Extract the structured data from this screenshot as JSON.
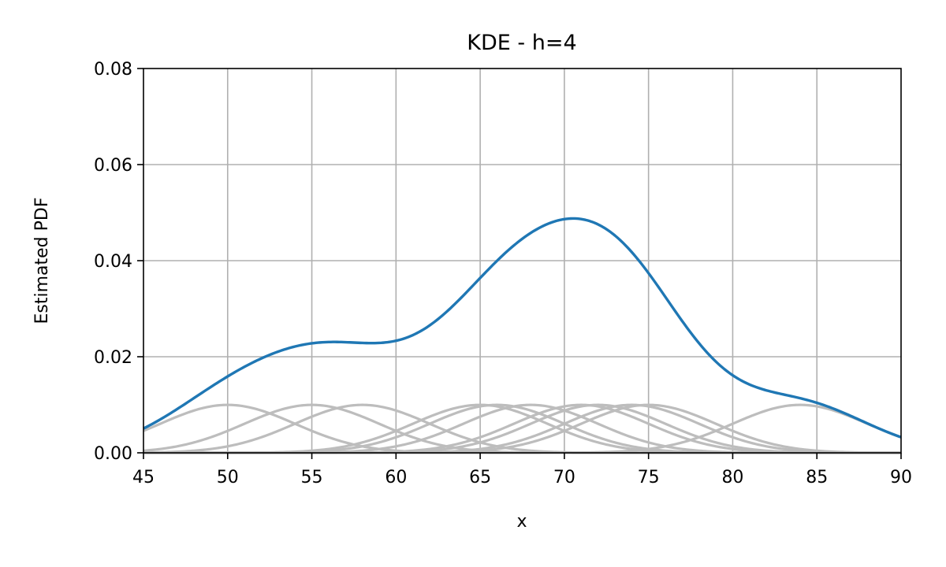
{
  "chart_data": {
    "type": "line",
    "title": "KDE - h=4",
    "xlabel": "x",
    "ylabel": "Estimated PDF",
    "xlim": [
      45,
      90
    ],
    "ylim": [
      0,
      0.08
    ],
    "xticks": [
      45,
      50,
      55,
      60,
      65,
      70,
      75,
      80,
      85,
      90
    ],
    "yticks": [
      0.0,
      0.02,
      0.04,
      0.06,
      0.08
    ],
    "ytick_labels": [
      "0.00",
      "0.02",
      "0.04",
      "0.06",
      "0.08"
    ],
    "grid": true,
    "bandwidth": 4,
    "kernel_scale": 0.1,
    "data_points": [
      50,
      55,
      58,
      65,
      66,
      68,
      71,
      72,
      74,
      75,
      84
    ],
    "series": [
      {
        "role": "kde",
        "color": "#1f77b4"
      },
      {
        "role": "kernels",
        "color": "#bdbdbd"
      }
    ]
  }
}
